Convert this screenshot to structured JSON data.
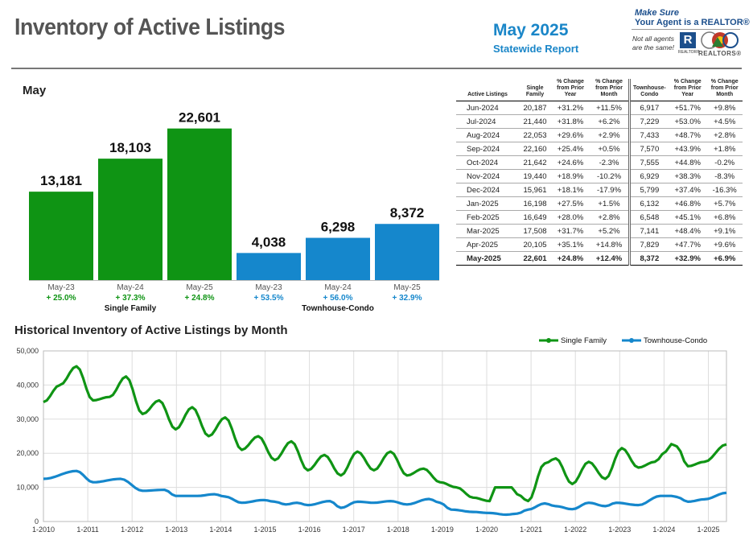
{
  "header": {
    "title": "Inventory of Active Listings",
    "report_title": "May 2025",
    "report_subtitle": "Statewide Report",
    "tagline1": "Make Sure",
    "tagline2": "Your Agent is a REALTOR®",
    "note1": "Not all agents",
    "note2": "are the same!",
    "r_logo": "R",
    "r_logo_small": "REALTOR®",
    "co_logo_text": "REALTORS®"
  },
  "colors": {
    "single_family": "#0f9414",
    "townhouse": "#1587cc",
    "title_gray": "#555555",
    "report_blue": "#1a86c8"
  },
  "month_panel": {
    "title": "May",
    "chart_data": {
      "type": "bar",
      "groups": [
        {
          "name": "Single Family",
          "categories": [
            "May-23",
            "May-24",
            "May-25"
          ],
          "values": [
            13181,
            18103,
            22601
          ],
          "value_labels": [
            "13,181",
            "18,103",
            "22,601"
          ],
          "changes": [
            "+ 25.0%",
            "+ 37.3%",
            "+ 24.8%"
          ]
        },
        {
          "name": "Townhouse-Condo",
          "categories": [
            "May-23",
            "May-24",
            "May-25"
          ],
          "values": [
            4038,
            6298,
            8372
          ],
          "value_labels": [
            "4,038",
            "6,298",
            "8,372"
          ],
          "changes": [
            "+ 53.5%",
            "+ 56.0%",
            "+ 32.9%"
          ]
        }
      ],
      "ylim": [
        0,
        30000
      ]
    }
  },
  "table": {
    "headers": [
      "Active Listings",
      "Single Family",
      "% Change from Prior Year",
      "% Change from Prior Month",
      "Townhouse-Condo",
      "% Change from Prior Year",
      "% Change from Prior Month"
    ],
    "rows": [
      [
        "Jun-2024",
        "20,187",
        "+31.2%",
        "+11.5%",
        "6,917",
        "+51.7%",
        "+9.8%"
      ],
      [
        "Jul-2024",
        "21,440",
        "+31.8%",
        "+6.2%",
        "7,229",
        "+53.0%",
        "+4.5%"
      ],
      [
        "Aug-2024",
        "22,053",
        "+29.6%",
        "+2.9%",
        "7,433",
        "+48.7%",
        "+2.8%"
      ],
      [
        "Sep-2024",
        "22,160",
        "+25.4%",
        "+0.5%",
        "7,570",
        "+43.9%",
        "+1.8%"
      ],
      [
        "Oct-2024",
        "21,642",
        "+24.6%",
        "-2.3%",
        "7,555",
        "+44.8%",
        "-0.2%"
      ],
      [
        "Nov-2024",
        "19,440",
        "+18.9%",
        "-10.2%",
        "6,929",
        "+38.3%",
        "-8.3%"
      ],
      [
        "Dec-2024",
        "15,961",
        "+18.1%",
        "-17.9%",
        "5,799",
        "+37.4%",
        "-16.3%"
      ],
      [
        "Jan-2025",
        "16,198",
        "+27.5%",
        "+1.5%",
        "6,132",
        "+46.8%",
        "+5.7%"
      ],
      [
        "Feb-2025",
        "16,649",
        "+28.0%",
        "+2.8%",
        "6,548",
        "+45.1%",
        "+6.8%"
      ],
      [
        "Mar-2025",
        "17,508",
        "+31.7%",
        "+5.2%",
        "7,141",
        "+48.4%",
        "+9.1%"
      ],
      [
        "Apr-2025",
        "20,105",
        "+35.1%",
        "+14.8%",
        "7,829",
        "+47.7%",
        "+9.6%"
      ],
      [
        "May-2025",
        "22,601",
        "+24.8%",
        "+12.4%",
        "8,372",
        "+32.9%",
        "+6.9%"
      ]
    ]
  },
  "historical": {
    "title": "Historical Inventory of Active Listings by Month",
    "chart_data": {
      "type": "line",
      "x_start": "2010-01",
      "x_ticks": [
        "1-2010",
        "1-2011",
        "1-2012",
        "1-2013",
        "1-2014",
        "1-2015",
        "1-2016",
        "1-2017",
        "1-2018",
        "1-2019",
        "1-2020",
        "1-2021",
        "1-2022",
        "1-2023",
        "1-2024",
        "1-2025"
      ],
      "y_ticks": [
        "0",
        "10,000",
        "20,000",
        "30,000",
        "40,000",
        "50,000"
      ],
      "ylim": [
        0,
        50000
      ],
      "grid": true,
      "legend": "top-right",
      "series": [
        {
          "name": "Single Family",
          "anchors": [
            [
              0,
              35000
            ],
            [
              3,
              40000
            ],
            [
              6,
              45500
            ],
            [
              9,
              35500
            ],
            [
              12,
              36500
            ],
            [
              15,
              42500
            ],
            [
              18,
              31500
            ],
            [
              21,
              35500
            ],
            [
              24,
              27000
            ],
            [
              27,
              33500
            ],
            [
              30,
              25000
            ],
            [
              33,
              30500
            ],
            [
              36,
              21000
            ],
            [
              39,
              25000
            ],
            [
              42,
              18000
            ],
            [
              45,
              23500
            ],
            [
              48,
              15000
            ],
            [
              51,
              19500
            ],
            [
              54,
              13500
            ],
            [
              57,
              20500
            ],
            [
              60,
              15000
            ],
            [
              63,
              20500
            ],
            [
              66,
              13500
            ],
            [
              69,
              15500
            ],
            [
              72,
              11500
            ],
            [
              75,
              10000
            ],
            [
              78,
              7000
            ],
            [
              81,
              6000
            ],
            [
              82,
              10000
            ],
            [
              85,
              10000
            ],
            [
              86,
              8000
            ],
            [
              88,
              6000
            ],
            [
              91,
              17000
            ],
            [
              93,
              18500
            ],
            [
              96,
              11000
            ],
            [
              99,
              17500
            ],
            [
              102,
              12500
            ],
            [
              105,
              21500
            ],
            [
              108,
              15800
            ],
            [
              111,
              17500
            ],
            [
              113,
              20500
            ],
            [
              114,
              22700
            ],
            [
              115,
              22000
            ],
            [
              117,
              16200
            ],
            [
              120,
              17500
            ],
            [
              124,
              22600
            ]
          ]
        },
        {
          "name": "Townhouse-Condo",
          "anchors": [
            [
              0,
              12500
            ],
            [
              6,
              14800
            ],
            [
              9,
              11500
            ],
            [
              14,
              12500
            ],
            [
              18,
              9000
            ],
            [
              22,
              9300
            ],
            [
              24,
              7500
            ],
            [
              28,
              7500
            ],
            [
              31,
              8000
            ],
            [
              33,
              7300
            ],
            [
              36,
              5500
            ],
            [
              40,
              6300
            ],
            [
              42,
              5800
            ],
            [
              44,
              5000
            ],
            [
              46,
              5500
            ],
            [
              48,
              4800
            ],
            [
              52,
              6000
            ],
            [
              54,
              4000
            ],
            [
              57,
              5800
            ],
            [
              60,
              5500
            ],
            [
              63,
              6000
            ],
            [
              66,
              5000
            ],
            [
              70,
              6600
            ],
            [
              72,
              5500
            ],
            [
              74,
              3500
            ],
            [
              78,
              2800
            ],
            [
              81,
              2500
            ],
            [
              84,
              2000
            ],
            [
              86,
              2300
            ],
            [
              88,
              3500
            ],
            [
              91,
              5300
            ],
            [
              93,
              4500
            ],
            [
              96,
              3600
            ],
            [
              99,
              5500
            ],
            [
              102,
              4500
            ],
            [
              104,
              5500
            ],
            [
              108,
              4800
            ],
            [
              112,
              7500
            ],
            [
              114,
              7500
            ],
            [
              115,
              7200
            ],
            [
              117,
              5800
            ],
            [
              120,
              6500
            ],
            [
              124,
              8400
            ]
          ]
        }
      ]
    }
  }
}
